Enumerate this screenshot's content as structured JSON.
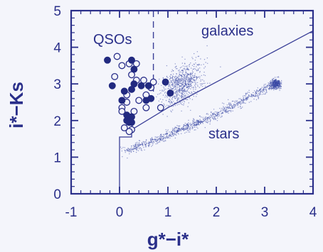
{
  "chart_data": {
    "type": "scatter",
    "title": "",
    "xlabel": "g*−i*",
    "ylabel": "i*−Ks",
    "xlim": [
      -1,
      4
    ],
    "ylim": [
      0,
      5
    ],
    "x_ticks": [
      "-1",
      "0",
      "1",
      "2",
      "3",
      "4"
    ],
    "y_ticks": [
      "0",
      "1",
      "2",
      "3",
      "4",
      "5"
    ],
    "annotations": [
      {
        "text": "QSOs",
        "x": -0.05,
        "y": 4.1
      },
      {
        "text": "galaxies",
        "x": 2.4,
        "y": 4.3
      },
      {
        "text": "stars",
        "x": 2.4,
        "y": 1.5
      }
    ],
    "selection_boundary": [
      [
        0.0,
        0.0
      ],
      [
        0.0,
        1.55
      ],
      [
        0.25,
        1.55
      ],
      [
        0.25,
        1.75
      ],
      [
        1.0,
        2.35
      ],
      [
        4.0,
        4.45
      ]
    ],
    "dashed_line_x": 0.7,
    "point_clouds": [
      {
        "name": "stars",
        "density": "high",
        "center_line": [
          [
            0.1,
            1.15
          ],
          [
            1.0,
            1.6
          ],
          [
            2.0,
            2.15
          ],
          [
            3.2,
            3.0
          ],
          [
            3.25,
            3.0
          ]
        ]
      },
      {
        "name": "galaxies",
        "density": "medium",
        "center": [
          1.3,
          3.0
        ]
      }
    ],
    "series": [
      {
        "name": "QSOs (filled)",
        "points": [
          [
            -0.25,
            3.65
          ],
          [
            0.25,
            3.65
          ],
          [
            0.3,
            3.4
          ],
          [
            0.3,
            3.0
          ],
          [
            0.25,
            2.85
          ],
          [
            0.1,
            2.8
          ],
          [
            0.45,
            2.95
          ],
          [
            0.6,
            2.95
          ],
          [
            -0.15,
            2.95
          ],
          [
            0.05,
            2.55
          ],
          [
            0.15,
            2.15
          ],
          [
            0.25,
            2.1
          ],
          [
            0.15,
            2.0
          ],
          [
            0.25,
            1.95
          ],
          [
            0.55,
            2.55
          ],
          [
            0.65,
            2.6
          ],
          [
            0.95,
            3.05
          ],
          [
            1.05,
            2.75
          ],
          [
            0.2,
            1.95
          ]
        ]
      },
      {
        "name": "QSOs (open)",
        "points": [
          [
            -0.05,
            3.75
          ],
          [
            0.05,
            3.5
          ],
          [
            0.2,
            3.55
          ],
          [
            0.35,
            3.55
          ],
          [
            -0.1,
            3.2
          ],
          [
            0.25,
            3.25
          ],
          [
            0.35,
            3.1
          ],
          [
            0.5,
            3.1
          ],
          [
            0.55,
            2.7
          ],
          [
            0.15,
            2.7
          ],
          [
            0.05,
            2.35
          ],
          [
            0.05,
            2.25
          ],
          [
            0.15,
            2.5
          ],
          [
            0.4,
            2.55
          ],
          [
            0.2,
            1.85
          ],
          [
            0.25,
            1.75
          ],
          [
            0.2,
            1.7
          ],
          [
            0.1,
            1.8
          ],
          [
            0.55,
            2.35
          ],
          [
            0.65,
            2.9
          ],
          [
            0.7,
            3.05
          ],
          [
            0.85,
            2.35
          ],
          [
            0.3,
            2.25
          ]
        ]
      }
    ]
  }
}
